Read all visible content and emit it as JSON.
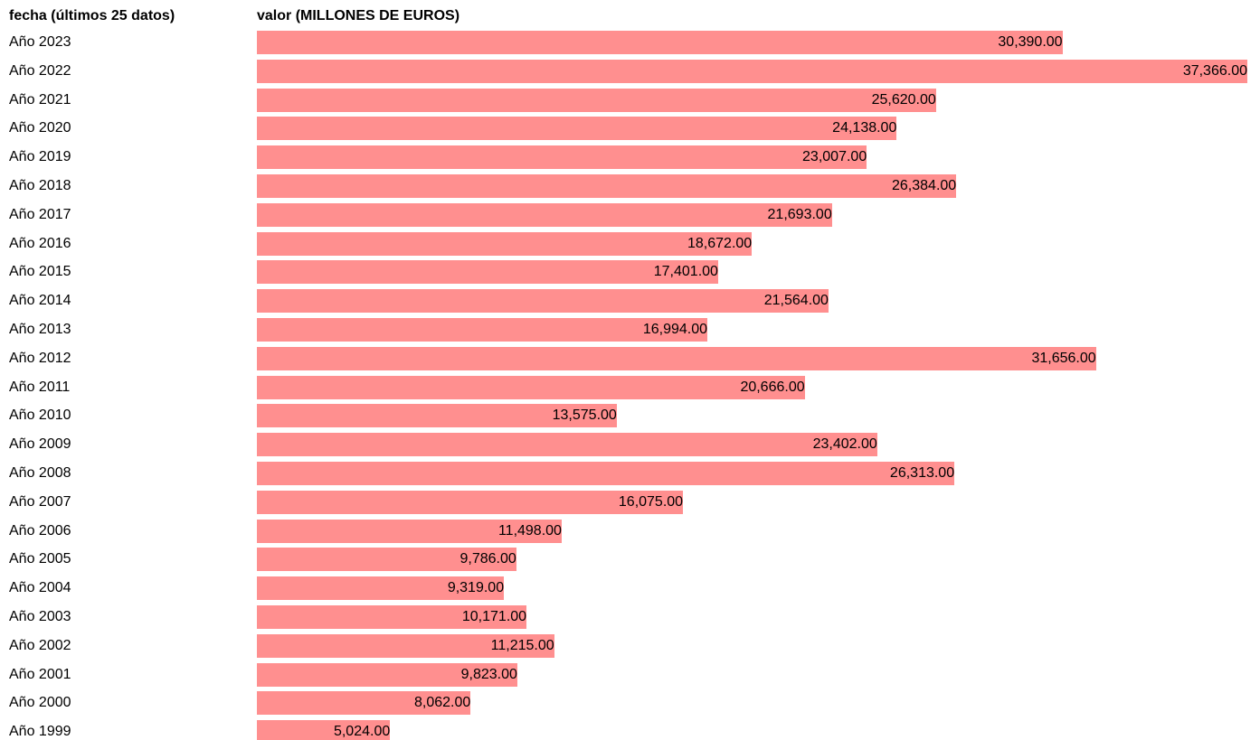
{
  "chart_data": {
    "type": "bar",
    "orientation": "horizontal",
    "category_header": "fecha (últimos 25 datos)",
    "value_header": "valor (MILLONES DE EUROS)",
    "categories": [
      "Año 2023",
      "Año 2022",
      "Año 2021",
      "Año 2020",
      "Año 2019",
      "Año 2018",
      "Año 2017",
      "Año 2016",
      "Año 2015",
      "Año 2014",
      "Año 2013",
      "Año 2012",
      "Año 2011",
      "Año 2010",
      "Año 2009",
      "Año 2008",
      "Año 2007",
      "Año 2006",
      "Año 2005",
      "Año 2004",
      "Año 2003",
      "Año 2002",
      "Año 2001",
      "Año 2000",
      "Año 1999"
    ],
    "values": [
      30390,
      37366,
      25620,
      24138,
      23007,
      26384,
      21693,
      18672,
      17401,
      21564,
      16994,
      31656,
      20666,
      13575,
      23402,
      26313,
      16075,
      11498,
      9786,
      9319,
      10171,
      11215,
      9823,
      8062,
      5024
    ],
    "value_labels": [
      "30,390.00",
      "37,366.00",
      "25,620.00",
      "24,138.00",
      "23,007.00",
      "26,384.00",
      "21,693.00",
      "18,672.00",
      "17,401.00",
      "21,564.00",
      "16,994.00",
      "31,656.00",
      "20,666.00",
      "13,575.00",
      "23,402.00",
      "26,313.00",
      "16,075.00",
      "11,498.00",
      "9,786.00",
      "9,319.00",
      "10,171.00",
      "11,215.00",
      "9,823.00",
      "8,062.00",
      "5,024.00"
    ],
    "bar_color": "#ff8f8f",
    "grid": false,
    "legend": "none"
  }
}
